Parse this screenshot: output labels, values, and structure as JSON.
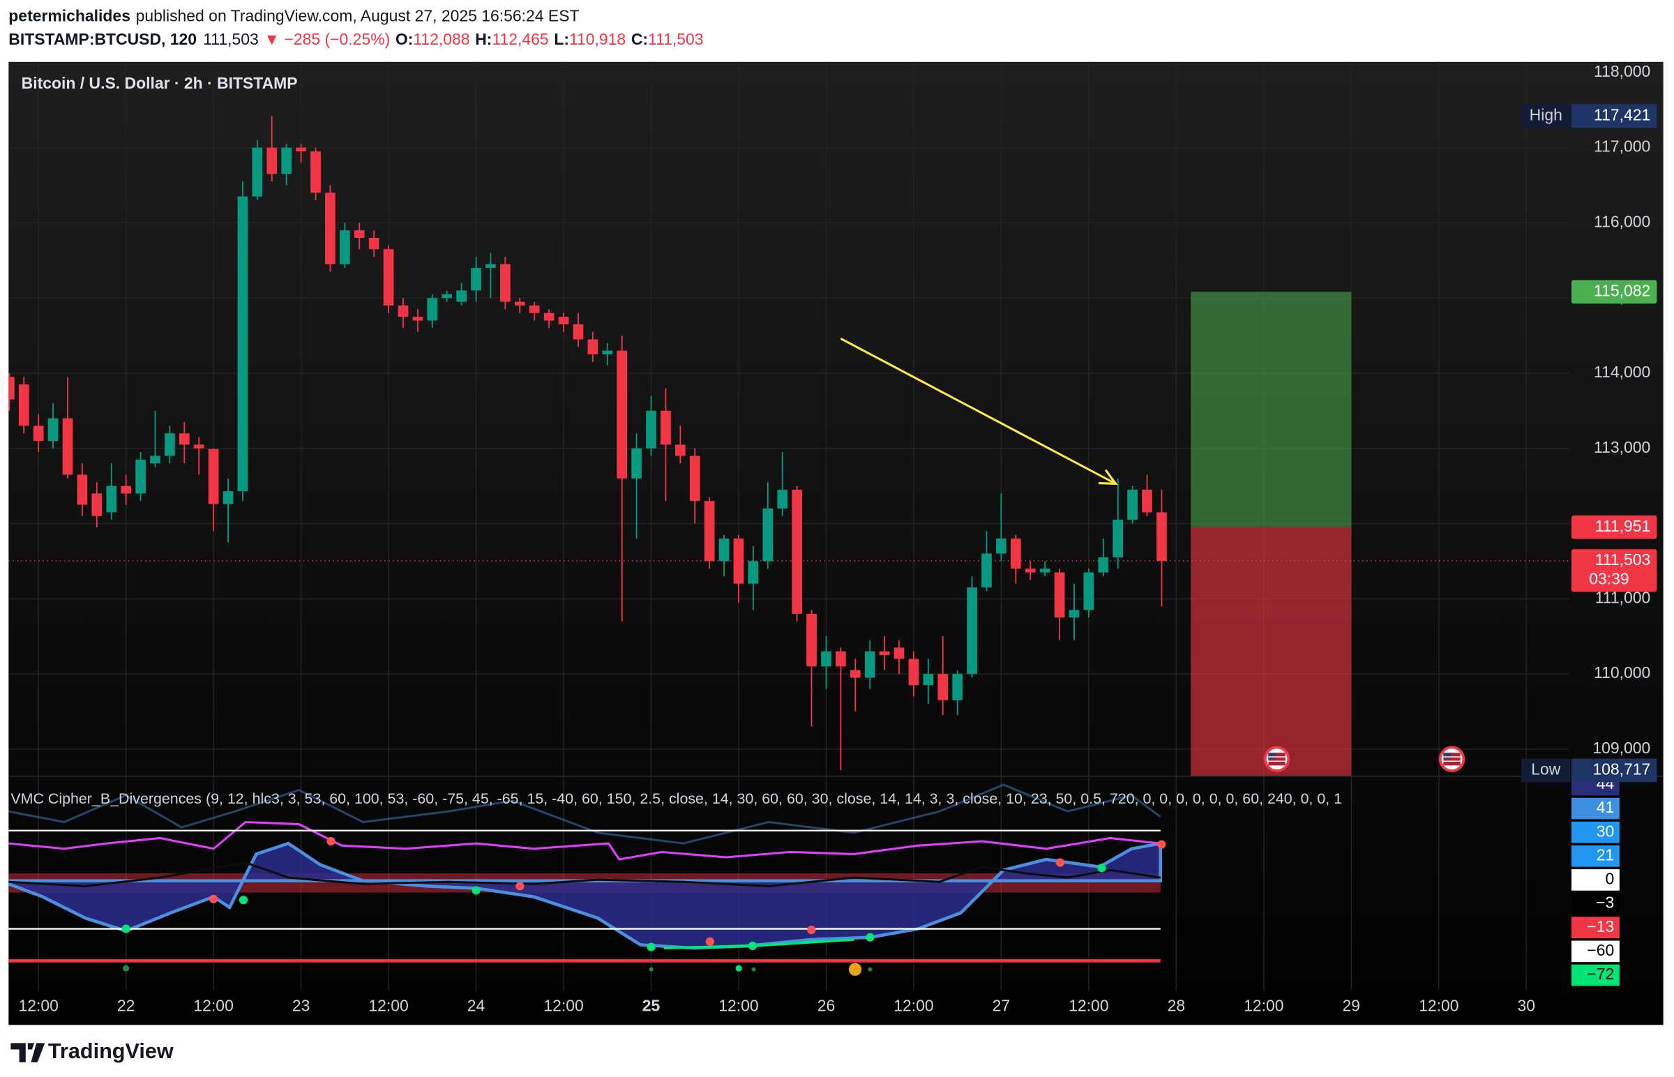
{
  "header": {
    "author": "petermichalides",
    "published": "published on TradingView.com, August 27, 2025 16:56:24 EST",
    "symbol": "BITSTAMP:BTCUSD, 120",
    "price": "111,503",
    "change": "▼ −285 (−0.25%)",
    "ohlc": [
      {
        "key": "O:",
        "value": "112,088"
      },
      {
        "key": "H:",
        "value": "112,465"
      },
      {
        "key": "L:",
        "value": "110,918"
      },
      {
        "key": "C:",
        "value": "111,503"
      }
    ]
  },
  "chart_data": {
    "type": "candlestick",
    "title": "Bitcoin / U.S. Dollar · 2h · BITSTAMP",
    "up_color": "#089981",
    "down_color": "#f23645",
    "x": [
      -16,
      -14,
      -12,
      -10,
      -8,
      -6,
      -4,
      -2,
      0,
      2,
      4,
      6,
      8,
      10,
      12,
      14,
      16,
      18,
      20,
      22,
      24,
      26,
      28,
      30,
      32,
      34,
      36,
      38,
      40,
      42,
      44,
      46,
      48,
      50,
      52,
      54,
      56,
      58,
      60,
      62,
      64,
      66,
      68,
      70,
      72,
      74,
      76,
      78,
      80,
      82,
      84,
      86,
      88,
      90,
      92,
      94,
      96,
      98,
      100,
      102,
      104,
      106,
      108,
      110,
      112,
      114,
      116,
      118,
      120,
      122,
      124,
      126,
      128,
      130,
      132,
      134,
      136,
      138,
      140,
      142
    ],
    "open": [
      113950,
      113850,
      113300,
      113100,
      113400,
      112650,
      112400,
      112150,
      112500,
      112400,
      112800,
      112900,
      113200,
      113050,
      112990,
      112260,
      112430,
      116350,
      117000,
      116650,
      117000,
      116950,
      116400,
      115450,
      115900,
      115800,
      115650,
      114900,
      114750,
      114700,
      115000,
      114950,
      115100,
      115400,
      115450,
      114950,
      114900,
      114800,
      114750,
      114650,
      114450,
      114250,
      114300,
      112600,
      113000,
      113500,
      113050,
      112900,
      112300,
      111500,
      111800,
      111200,
      111500,
      112200,
      112450,
      110800,
      110100,
      110300,
      110050,
      109950,
      110300,
      110350,
      110200,
      109850,
      110000,
      109650,
      110000,
      111150,
      111600,
      111800,
      111400,
      111350,
      111350,
      110750,
      110850,
      111350,
      111550,
      112050,
      112450,
      112150
    ],
    "high": [
      114000,
      113950,
      113450,
      113600,
      113950,
      112800,
      112550,
      112800,
      112650,
      112950,
      113500,
      113300,
      113350,
      113150,
      113000,
      112600,
      116550,
      117100,
      117421,
      117050,
      117050,
      117000,
      116500,
      116000,
      116000,
      115900,
      115700,
      115000,
      114850,
      115050,
      115100,
      115200,
      115550,
      115600,
      115550,
      115000,
      114950,
      114850,
      114800,
      114800,
      114550,
      114400,
      114500,
      113200,
      113700,
      113800,
      113300,
      113000,
      112350,
      111850,
      111850,
      111700,
      112550,
      112950,
      112500,
      110850,
      110500,
      110350,
      110200,
      110450,
      110500,
      110450,
      110300,
      110200,
      110500,
      110050,
      111300,
      111900,
      112400,
      111850,
      111500,
      111500,
      111400,
      111200,
      111400,
      111800,
      112600,
      112500,
      112650,
      112450
    ],
    "low": [
      113500,
      113200,
      112950,
      113000,
      112600,
      112100,
      111950,
      112050,
      112250,
      112300,
      112750,
      112800,
      112800,
      112650,
      111900,
      111750,
      112300,
      116300,
      116550,
      116500,
      116800,
      116300,
      115350,
      115400,
      115650,
      115550,
      114800,
      114600,
      114550,
      114600,
      114950,
      114900,
      114950,
      115000,
      114850,
      114800,
      114700,
      114600,
      114550,
      114350,
      114150,
      114100,
      110700,
      111800,
      112900,
      112300,
      112800,
      112000,
      111400,
      111300,
      110950,
      110850,
      111400,
      112100,
      110700,
      109300,
      109800,
      108717,
      109500,
      109800,
      110050,
      110000,
      109700,
      109600,
      109450,
      109450,
      109950,
      111100,
      111500,
      111200,
      111250,
      111300,
      110450,
      110450,
      110750,
      111300,
      111400,
      112000,
      112100,
      110900
    ],
    "close": [
      113650,
      113300,
      113100,
      113400,
      112650,
      112250,
      112100,
      112500,
      112400,
      112850,
      112900,
      113200,
      113050,
      113000,
      112260,
      112430,
      116350,
      117000,
      116650,
      117000,
      116950,
      116400,
      115450,
      115900,
      115800,
      115650,
      114900,
      114750,
      114700,
      115000,
      115050,
      115100,
      115400,
      115450,
      114950,
      114900,
      114800,
      114700,
      114650,
      114450,
      114250,
      114300,
      112600,
      113000,
      113500,
      113050,
      112900,
      112300,
      111500,
      111800,
      111200,
      111500,
      112200,
      112450,
      110800,
      110100,
      110300,
      110100,
      109950,
      110300,
      110250,
      110200,
      109850,
      110000,
      109650,
      110000,
      111150,
      111600,
      111800,
      111400,
      111350,
      111400,
      110750,
      110850,
      111350,
      111550,
      112050,
      112450,
      112150,
      111503
    ],
    "xlim": [
      -16.1,
      197.9
    ],
    "ylim": [
      108640,
      118140
    ],
    "xticks": [
      {
        "value": -12,
        "label": "12:00"
      },
      {
        "value": 0,
        "label": "22"
      },
      {
        "value": 12,
        "label": "12:00"
      },
      {
        "value": 24,
        "label": "23"
      },
      {
        "value": 36,
        "label": "12:00"
      },
      {
        "value": 48,
        "label": "24"
      },
      {
        "value": 60,
        "label": "12:00"
      },
      {
        "value": 72,
        "label": "25",
        "bold": true
      },
      {
        "value": 84,
        "label": "12:00"
      },
      {
        "value": 96,
        "label": "26"
      },
      {
        "value": 108,
        "label": "12:00"
      },
      {
        "value": 120,
        "label": "27"
      },
      {
        "value": 132,
        "label": "12:00"
      },
      {
        "value": 144,
        "label": "28"
      },
      {
        "value": 156,
        "label": "12:00"
      },
      {
        "value": 168,
        "label": "29"
      },
      {
        "value": 180,
        "label": "12:00"
      },
      {
        "value": 192,
        "label": "30"
      }
    ],
    "yticks": [
      {
        "value": 109000,
        "label": "109,000"
      },
      {
        "value": 110000,
        "label": "110,000"
      },
      {
        "value": 111000,
        "label": "111,000"
      },
      {
        "value": 112000,
        "label": "112,000"
      },
      {
        "value": 113000,
        "label": "113,000"
      },
      {
        "value": 114000,
        "label": "114,000"
      },
      {
        "value": 115000,
        "label": "115,000"
      },
      {
        "value": 116000,
        "label": "116,000"
      },
      {
        "value": 117000,
        "label": "117,000"
      },
      {
        "value": 118000,
        "label": "118,000"
      }
    ],
    "grid": true,
    "high_marker": {
      "text": "High",
      "value": 117421,
      "label": "117,421"
    },
    "low_marker": {
      "text": "Low",
      "value": 108717,
      "label": "108,717"
    },
    "last_price": {
      "value": 111503,
      "label": "111,503",
      "countdown": "03:39"
    },
    "position": {
      "start": 146,
      "end": 168,
      "target": {
        "value": 115082,
        "label": "115,082"
      },
      "entry": {
        "value": 111951,
        "label": "111,951"
      }
    },
    "arrow": {
      "from": [
        98,
        114460
      ],
      "to": [
        135.7,
        112530
      ],
      "color": "#ffeb3b"
    }
  },
  "indicator": {
    "title": "VMC Cipher_B_Divergences (9, 12, hlc3, 3, 53, 60, 100, 53, -60, -75, 45, -65, 15, -40, 60, 150, 2.5, close, 14, 30, 60, 60, 30, close, 14, 14, 3, 3, close, 10, 23, 50, 0.5, 720, 0, 0, 0, 0, 0, 0, 60, 240, 0, 0, 1",
    "scale": [
      44,
      41,
      30,
      21,
      0,
      {
        "value": -3,
        "label": "−3"
      },
      {
        "value": -13,
        "label": "−13"
      },
      {
        "value": -60,
        "label": "−60"
      },
      {
        "value": -72,
        "label": "−72"
      }
    ],
    "scale_colors": [
      "#2a2e7a",
      "#3d8fe0",
      "#2196f3",
      "#2196f3",
      "#ffffff",
      "#000000",
      "#f23645",
      "#ffffff",
      "#00e676"
    ]
  },
  "footer": {
    "brand": "TradingView"
  }
}
